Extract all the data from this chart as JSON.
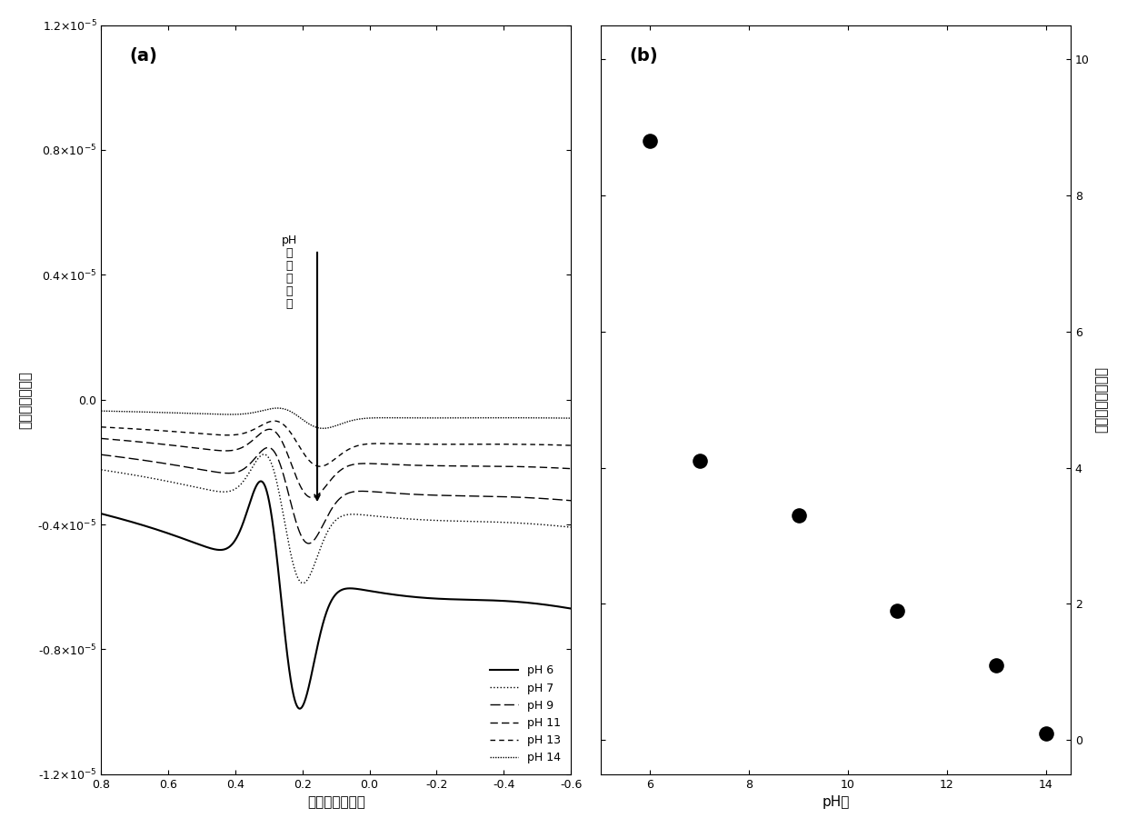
{
  "panel_a_label": "(a)",
  "panel_b_label": "(b)",
  "ylabel_a": "电流値（安培）",
  "xlabel_a": "电压値（伏特）",
  "ylabel_b": "峰电流値（安培）",
  "xlabel_b": "pH値",
  "xlim_a": [
    0.8,
    -0.6
  ],
  "ylim_a": [
    -1.2e-05,
    1.2e-05
  ],
  "yticks_a": [
    -1.2e-05,
    -8e-06,
    -4e-06,
    0.0,
    4e-06,
    8e-06,
    1.2e-05
  ],
  "xticks_a": [
    0.8,
    0.6,
    0.4,
    0.2,
    0.0,
    -0.2,
    -0.4,
    -0.6
  ],
  "xlim_b": [
    5,
    14.5
  ],
  "ylim_b": [
    -0.5,
    10.5
  ],
  "yticks_b": [
    0,
    2,
    4,
    6,
    8,
    10
  ],
  "xticks_b": [
    6,
    8,
    10,
    12,
    14
  ],
  "scatter_x": [
    6,
    7,
    9,
    11,
    13,
    14
  ],
  "scatter_y": [
    8.8,
    4.1,
    3.3,
    1.9,
    1.1,
    0.1
  ],
  "background_color": "#ffffff",
  "line_color": "#000000"
}
